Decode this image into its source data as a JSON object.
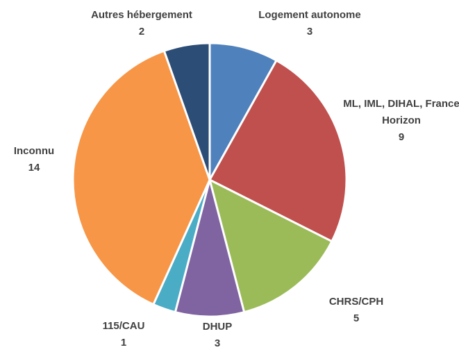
{
  "chart_data": {
    "type": "pie",
    "categories": [
      "Logement autonome",
      "ML, IML, DIHAL, France Horizon",
      "CHRS/CPH",
      "DHUP",
      "115/CAU",
      "Inconnu",
      "Autres hébergement"
    ],
    "values": [
      3,
      9,
      5,
      3,
      1,
      14,
      2
    ],
    "colors": [
      "#4f81bd",
      "#c0504d",
      "#9bbb59",
      "#8064a2",
      "#4bacc6",
      "#f79646",
      "#2c4d75"
    ]
  }
}
